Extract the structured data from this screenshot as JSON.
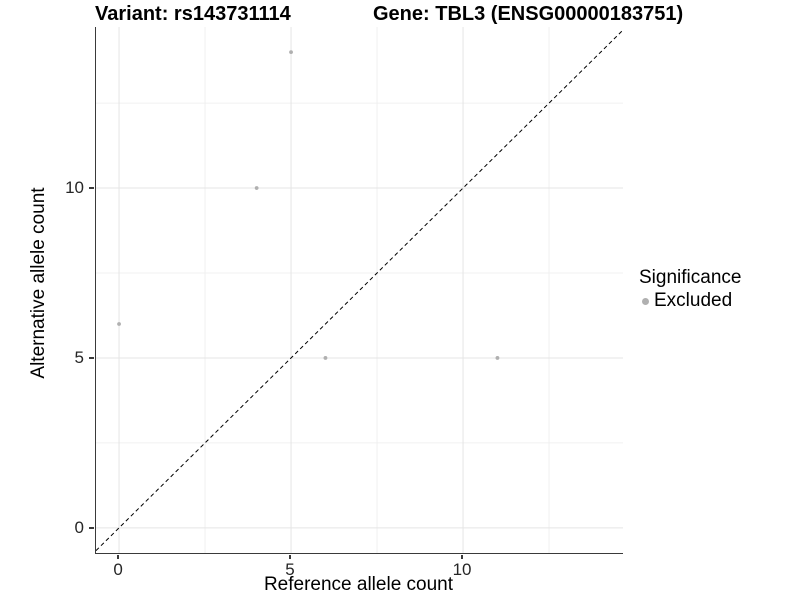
{
  "titles": {
    "variant": "Variant: rs143731114",
    "gene": "Gene: TBL3 (ENSG00000183751)"
  },
  "legend": {
    "title": "Significance",
    "items": [
      {
        "label": "Excluded",
        "color": "#b0b0b0"
      }
    ]
  },
  "colors": {
    "point": "#b0b0b0",
    "grid_major": "#e5e5e5",
    "grid_minor": "#f0f0f0",
    "axis_line": "#3a3a3a",
    "identity_line": "#000000",
    "background": "#ffffff"
  },
  "chart_data": {
    "type": "scatter",
    "title_left": "Variant: rs143731114",
    "title_right": "Gene: TBL3 (ENSG00000183751)",
    "xlabel": "Reference allele count",
    "ylabel": "Alternative allele count",
    "xlim": [
      -0.67,
      14.65
    ],
    "ylim": [
      -0.74,
      14.74
    ],
    "x_major_ticks": [
      0,
      5,
      10
    ],
    "y_major_ticks": [
      0,
      5,
      10
    ],
    "x_minor_ticks": [
      2.5,
      7.5,
      12.5
    ],
    "y_minor_ticks": [
      2.5,
      7.5,
      12.5
    ],
    "grid": "major+minor",
    "legend_position": "right",
    "identity_line": {
      "show": true,
      "slope": 1,
      "intercept": 0,
      "style": "dashed"
    },
    "series": [
      {
        "name": "Excluded",
        "color": "#b0b0b0",
        "points": [
          {
            "x": 0,
            "y": 6
          },
          {
            "x": 4,
            "y": 10
          },
          {
            "x": 5,
            "y": 14
          },
          {
            "x": 6,
            "y": 5
          },
          {
            "x": 11,
            "y": 5
          }
        ]
      }
    ]
  }
}
